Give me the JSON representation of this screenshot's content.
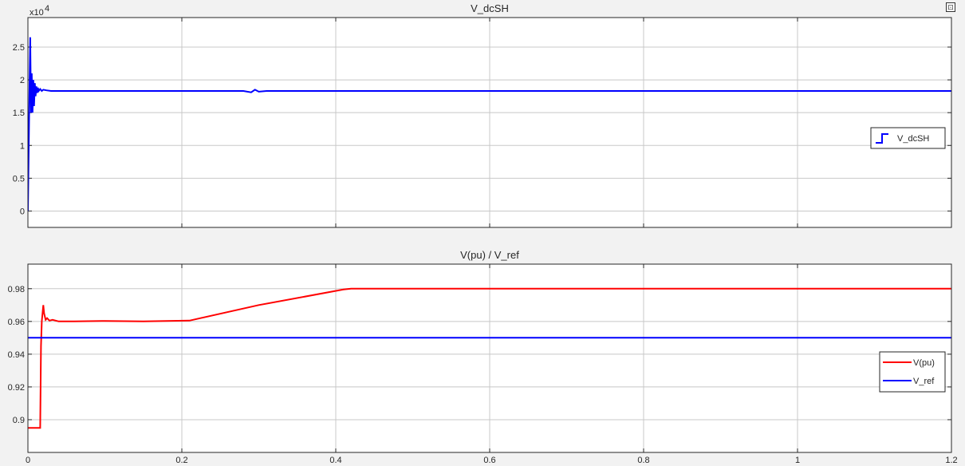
{
  "window": {
    "restore_icon": "restore-icon"
  },
  "chart_data": [
    {
      "type": "line",
      "title": "V_dcSH",
      "exponent_label": "x10",
      "exponent_power": "4",
      "xlim": [
        0,
        1.2
      ],
      "ylim": [
        -0.25,
        2.95
      ],
      "yticks": [
        0,
        0.5,
        1,
        1.5,
        2,
        2.5
      ],
      "ytick_labels": [
        "0",
        "0.5",
        "1",
        "1.5",
        "2",
        "2.5"
      ],
      "xticks": [
        0,
        0.2,
        0.4,
        0.6,
        0.8,
        1,
        1.2
      ],
      "xtick_labels": [],
      "grid": true,
      "legend_position": "right",
      "series": [
        {
          "name": "V_dcSH",
          "color": "#0000ff",
          "legend_style": "step",
          "x": [
            0,
            0.002,
            0.003,
            0.004,
            0.005,
            0.006,
            0.007,
            0.008,
            0.009,
            0.01,
            0.011,
            0.012,
            0.013,
            0.014,
            0.016,
            0.018,
            0.02,
            0.024,
            0.03,
            0.05,
            0.1,
            0.2,
            0.28,
            0.29,
            0.295,
            0.3,
            0.31,
            0.5,
            0.8,
            1.0,
            1.2
          ],
          "y": [
            0,
            1.8,
            2.65,
            1.5,
            2.1,
            1.5,
            2.0,
            1.6,
            1.95,
            1.75,
            1.9,
            1.8,
            1.88,
            1.83,
            1.86,
            1.83,
            1.85,
            1.84,
            1.83,
            1.83,
            1.83,
            1.83,
            1.83,
            1.81,
            1.85,
            1.82,
            1.83,
            1.83,
            1.83,
            1.83,
            1.83
          ]
        }
      ]
    },
    {
      "type": "line",
      "title": "V(pu) / V_ref",
      "xlim": [
        0,
        1.2
      ],
      "ylim": [
        0.88,
        0.995
      ],
      "yticks": [
        0.9,
        0.92,
        0.94,
        0.96,
        0.98
      ],
      "ytick_labels": [
        "0.9",
        "0.92",
        "0.94",
        "0.96",
        "0.98"
      ],
      "xticks": [
        0,
        0.2,
        0.4,
        0.6,
        0.8,
        1,
        1.2
      ],
      "xtick_labels": [
        "0",
        "0.2",
        "0.4",
        "0.6",
        "0.8",
        "1",
        "1.2"
      ],
      "grid": true,
      "legend_position": "bottom-right",
      "series": [
        {
          "name": "V(pu)",
          "color": "#ff0000",
          "x": [
            0,
            0.016,
            0.017,
            0.018,
            0.02,
            0.021,
            0.023,
            0.025,
            0.028,
            0.032,
            0.04,
            0.06,
            0.1,
            0.15,
            0.21,
            0.3,
            0.41,
            0.42,
            0.6,
            0.8,
            1.0,
            1.2
          ],
          "y": [
            0.895,
            0.895,
            0.945,
            0.96,
            0.97,
            0.965,
            0.961,
            0.962,
            0.9605,
            0.961,
            0.96,
            0.96,
            0.9603,
            0.96,
            0.9605,
            0.97,
            0.9795,
            0.98,
            0.98,
            0.98,
            0.98,
            0.98
          ]
        },
        {
          "name": "V_ref",
          "color": "#0000ff",
          "x": [
            0,
            1.2
          ],
          "y": [
            0.95,
            0.95
          ]
        }
      ]
    }
  ]
}
